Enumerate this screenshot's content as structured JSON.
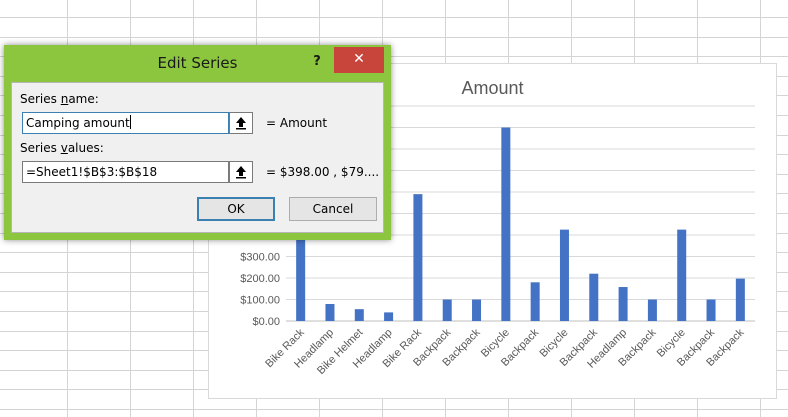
{
  "dialog": {
    "title": "Edit Series",
    "help_label": "?",
    "close_label": "✕",
    "series_name_label_pre": "Series ",
    "series_name_label_u": "n",
    "series_name_label_post": "ame:",
    "series_name_value": "Camping amount",
    "series_name_result": "= Amount",
    "series_values_label_pre": "Series ",
    "series_values_label_u": "v",
    "series_values_label_post": "alues:",
    "series_values_value": "=Sheet1!$B$3:$B$18",
    "series_values_result": "= $398.00 , $79....",
    "ok_label": "OK",
    "cancel_label": "Cancel"
  },
  "colors": {
    "bar": "#4472c4",
    "dialog_frame": "#8cc63f",
    "close": "#c7453b"
  },
  "chart_data": {
    "type": "bar",
    "title": "Amount",
    "categories": [
      "Bike Rack",
      "Headlamp",
      "Bike Helmet",
      "Headlamp",
      "Bike Rack",
      "Backpack",
      "Backpack",
      "Bicycle",
      "Backpack",
      "Bicycle",
      "Backpack",
      "Headlamp",
      "Backpack",
      "Bicycle",
      "Backpack",
      "Backpack"
    ],
    "values": [
      398,
      79,
      55,
      40,
      590,
      100,
      100,
      900,
      180,
      425,
      220,
      158,
      100,
      425,
      100,
      197
    ],
    "y_ticks": [
      "$0.00",
      "$100.00",
      "$200.00",
      "$300.00"
    ],
    "ylim": [
      0,
      1000
    ],
    "grid": true
  }
}
